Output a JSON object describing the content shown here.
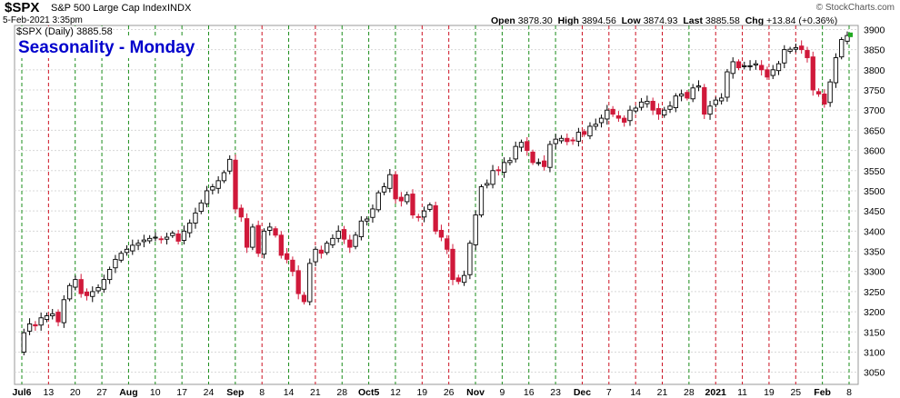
{
  "header": {
    "symbol": "$SPX",
    "name": "S&P 500 Large Cap Index",
    "exchange": "INDX",
    "datetime": "5-Feb-2021 3:35pm",
    "open_label": "Open",
    "open": "3878.30",
    "high_label": "High",
    "high": "3894.56",
    "low_label": "Low",
    "low": "3874.93",
    "last_label": "Last",
    "last": "3885.58",
    "chg_label": "Chg",
    "chg": "+13.84 (+0.36%)",
    "brand": "© StockCharts.com"
  },
  "legend": {
    "series_label": "$SPX (Daily) 3885.58",
    "annotation": "Seasonality - Monday"
  },
  "colors": {
    "up": "#000000",
    "down": "#d0193a",
    "green_line": "#1a8c1a",
    "red_line": "#cc1122",
    "grid": "#d8d8d8",
    "title_blue": "#0000cc"
  },
  "chart_data": {
    "type": "candlestick",
    "ylim": [
      3020,
      3910
    ],
    "y_ticks": [
      3050,
      3100,
      3150,
      3200,
      3250,
      3300,
      3350,
      3400,
      3450,
      3500,
      3550,
      3600,
      3650,
      3700,
      3750,
      3800,
      3850,
      3900
    ],
    "x_tick_labels": [
      "Jul6",
      "13",
      "20",
      "27",
      "Aug",
      "10",
      "17",
      "24",
      "Sep",
      "8",
      "14",
      "21",
      "28",
      "Oct5",
      "12",
      "19",
      "26",
      "Nov",
      "9",
      "16",
      "23",
      "Dec",
      "7",
      "14",
      "21",
      "28",
      "2021",
      "11",
      "19",
      "25",
      "Feb",
      "8"
    ],
    "bold_ticks": [
      "Jul6",
      "Aug",
      "Sep",
      "Oct5",
      "Nov",
      "Dec",
      "2021",
      "Feb"
    ],
    "monday_lines": [
      {
        "label": "Jul6",
        "color": "green"
      },
      {
        "label": "13",
        "color": "red"
      },
      {
        "label": "20",
        "color": "green"
      },
      {
        "label": "27",
        "color": "green"
      },
      {
        "label": "Aug",
        "color": "green"
      },
      {
        "label": "10",
        "color": "green"
      },
      {
        "label": "17",
        "color": "green"
      },
      {
        "label": "24",
        "color": "green"
      },
      {
        "label": "Sep",
        "color": "green"
      },
      {
        "label": "8",
        "color": "red"
      },
      {
        "label": "14",
        "color": "green"
      },
      {
        "label": "21",
        "color": "red"
      },
      {
        "label": "28",
        "color": "green"
      },
      {
        "label": "Oct5",
        "color": "green"
      },
      {
        "label": "12",
        "color": "green"
      },
      {
        "label": "19",
        "color": "red"
      },
      {
        "label": "26",
        "color": "red"
      },
      {
        "label": "Nov",
        "color": "green"
      },
      {
        "label": "9",
        "color": "green"
      },
      {
        "label": "16",
        "color": "green"
      },
      {
        "label": "23",
        "color": "green"
      },
      {
        "label": "Dec",
        "color": "red"
      },
      {
        "label": "7",
        "color": "red"
      },
      {
        "label": "14",
        "color": "red"
      },
      {
        "label": "21",
        "color": "red"
      },
      {
        "label": "28",
        "color": "green"
      },
      {
        "label": "2021",
        "color": "red"
      },
      {
        "label": "11",
        "color": "red"
      },
      {
        "label": "19",
        "color": "red"
      },
      {
        "label": "25",
        "color": "red"
      },
      {
        "label": "Feb",
        "color": "green"
      },
      {
        "label": "8",
        "color": "green"
      }
    ],
    "price_path": [
      3100,
      3148,
      3170,
      3165,
      3185,
      3190,
      3195,
      3175,
      3230,
      3265,
      3280,
      3245,
      3240,
      3250,
      3260,
      3280,
      3305,
      3330,
      3345,
      3355,
      3365,
      3370,
      3378,
      3382,
      3385,
      3380,
      3385,
      3395,
      3375,
      3400,
      3420,
      3445,
      3470,
      3500,
      3510,
      3525,
      3545,
      3578,
      3455,
      3435,
      3360,
      3410,
      3345,
      3400,
      3410,
      3390,
      3340,
      3330,
      3300,
      3245,
      3225,
      3320,
      3355,
      3345,
      3370,
      3382,
      3400,
      3380,
      3360,
      3390,
      3425,
      3430,
      3455,
      3495,
      3510,
      3540,
      3480,
      3475,
      3490,
      3440,
      3435,
      3450,
      3465,
      3400,
      3385,
      3355,
      3280,
      3275,
      3290,
      3370,
      3440,
      3510,
      3518,
      3550,
      3550,
      3570,
      3575,
      3610,
      3620,
      3600,
      3570,
      3570,
      3560,
      3615,
      3628,
      3630,
      3622,
      3625,
      3645,
      3640,
      3660,
      3665,
      3680,
      3700,
      3690,
      3680,
      3670,
      3700,
      3705,
      3720,
      3722,
      3700,
      3690,
      3700,
      3710,
      3735,
      3740,
      3730,
      3755,
      3760,
      3690,
      3710,
      3725,
      3730,
      3795,
      3820,
      3805,
      3810,
      3810,
      3815,
      3800,
      3782,
      3800,
      3815,
      3850,
      3851,
      3855,
      3850,
      3830,
      3750,
      3740,
      3715,
      3770,
      3830,
      3875,
      3885
    ],
    "last": 3885.58
  }
}
